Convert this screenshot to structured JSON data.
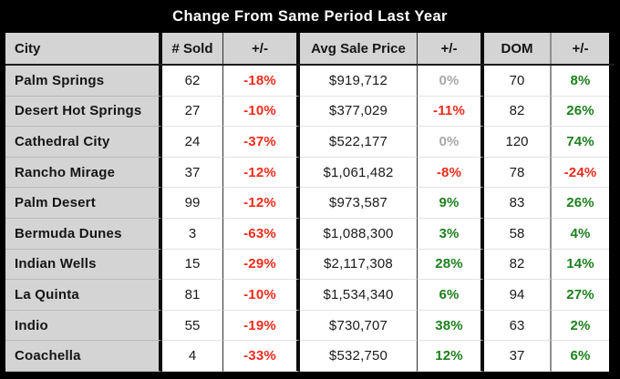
{
  "title": "Change From Same Period Last Year",
  "colors": {
    "frame": "#000000",
    "header_bg": "#d4d4d4",
    "negative": "#ef2b1c",
    "positive": "#1e801e",
    "zero": "#a8a8a8"
  },
  "chart_data": {
    "type": "table",
    "title": "Change From Same Period Last Year",
    "columns": [
      "City",
      "# Sold",
      "+/-",
      "Avg Sale Price",
      "+/-",
      "DOM",
      "+/-"
    ],
    "rows": [
      {
        "city": "Palm Springs",
        "sold": "62",
        "sold_change": "-18%",
        "avg_price": "$919,712",
        "price_change": "0%",
        "dom": "70",
        "dom_change": "8%"
      },
      {
        "city": "Desert Hot Springs",
        "sold": "27",
        "sold_change": "-10%",
        "avg_price": "$377,029",
        "price_change": "-11%",
        "dom": "82",
        "dom_change": "26%"
      },
      {
        "city": "Cathedral City",
        "sold": "24",
        "sold_change": "-37%",
        "avg_price": "$522,177",
        "price_change": "0%",
        "dom": "120",
        "dom_change": "74%"
      },
      {
        "city": "Rancho Mirage",
        "sold": "37",
        "sold_change": "-12%",
        "avg_price": "$1,061,482",
        "price_change": "-8%",
        "dom": "78",
        "dom_change": "-24%"
      },
      {
        "city": "Palm Desert",
        "sold": "99",
        "sold_change": "-12%",
        "avg_price": "$973,587",
        "price_change": "9%",
        "dom": "83",
        "dom_change": "26%"
      },
      {
        "city": "Bermuda Dunes",
        "sold": "3",
        "sold_change": "-63%",
        "avg_price": "$1,088,300",
        "price_change": "3%",
        "dom": "58",
        "dom_change": "4%"
      },
      {
        "city": "Indian Wells",
        "sold": "15",
        "sold_change": "-29%",
        "avg_price": "$2,117,308",
        "price_change": "28%",
        "dom": "82",
        "dom_change": "14%"
      },
      {
        "city": "La Quinta",
        "sold": "81",
        "sold_change": "-10%",
        "avg_price": "$1,534,340",
        "price_change": "6%",
        "dom": "94",
        "dom_change": "27%"
      },
      {
        "city": "Indio",
        "sold": "55",
        "sold_change": "-19%",
        "avg_price": "$730,707",
        "price_change": "38%",
        "dom": "63",
        "dom_change": "2%"
      },
      {
        "city": "Coachella",
        "sold": "4",
        "sold_change": "-33%",
        "avg_price": "$532,750",
        "price_change": "12%",
        "dom": "37",
        "dom_change": "6%"
      }
    ]
  }
}
